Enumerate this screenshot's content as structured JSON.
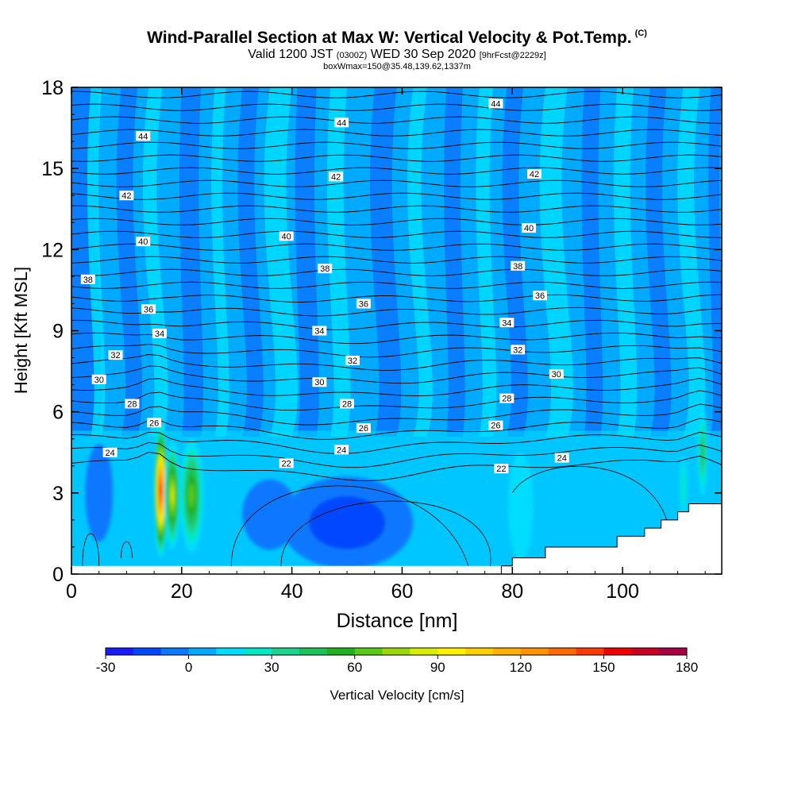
{
  "title": {
    "main": "Wind-Parallel Section at Max W: Vertical Velocity & Pot.Temp.",
    "copyright": "(C)",
    "valid_prefix": "Valid 1200 JST",
    "valid_utc": "(0300Z)",
    "valid_date": "WED 30 Sep 2020",
    "forecast": "[9hrFcst@2229z]",
    "box_info": "boxWmax=150@35.48,139.62,1337m"
  },
  "chart_data": {
    "type": "heatmap",
    "xlabel": "Distance [nm]",
    "ylabel": "Height [Kft MSL]",
    "xlim": [
      0,
      118
    ],
    "ylim": [
      0,
      18
    ],
    "xticks": [
      "0",
      "20",
      "40",
      "60",
      "80",
      "100"
    ],
    "yticks": [
      "0",
      "3",
      "6",
      "9",
      "12",
      "15",
      "18"
    ],
    "colorbar": {
      "label": "Vertical Velocity [cm/s]",
      "min": -30,
      "max": 180,
      "step": 10,
      "tick_labels": [
        "-30",
        "0",
        "30",
        "60",
        "90",
        "120",
        "150",
        "180"
      ],
      "colors": [
        "#1a1aff",
        "#0047ff",
        "#0a78ff",
        "#00aaff",
        "#00ddff",
        "#00e8c8",
        "#1cd28c",
        "#1ec25a",
        "#22b022",
        "#5ac818",
        "#9ad80a",
        "#d8ee00",
        "#fff000",
        "#ffd000",
        "#ffb000",
        "#ff9200",
        "#ff6a00",
        "#ff3a00",
        "#ee0000",
        "#c80022",
        "#a80044",
        "#8a0066",
        "#6a0088"
      ]
    },
    "theta_contours_label": "Pot.Temp.",
    "theta_contour_labels": [
      {
        "x": 7,
        "y": 4.5,
        "text": "24"
      },
      {
        "x": 49,
        "y": 4.6,
        "text": "24"
      },
      {
        "x": 89,
        "y": 4.3,
        "text": "24"
      },
      {
        "x": 39,
        "y": 4.1,
        "text": "22"
      },
      {
        "x": 78,
        "y": 3.9,
        "text": "22"
      },
      {
        "x": 15,
        "y": 5.6,
        "text": "26"
      },
      {
        "x": 53,
        "y": 5.4,
        "text": "26"
      },
      {
        "x": 77,
        "y": 5.5,
        "text": "26"
      },
      {
        "x": 11,
        "y": 6.3,
        "text": "28"
      },
      {
        "x": 50,
        "y": 6.3,
        "text": "28"
      },
      {
        "x": 79,
        "y": 6.5,
        "text": "28"
      },
      {
        "x": 5,
        "y": 7.2,
        "text": "30"
      },
      {
        "x": 45,
        "y": 7.1,
        "text": "30"
      },
      {
        "x": 88,
        "y": 7.4,
        "text": "30"
      },
      {
        "x": 8,
        "y": 8.1,
        "text": "32"
      },
      {
        "x": 51,
        "y": 7.9,
        "text": "32"
      },
      {
        "x": 81,
        "y": 8.3,
        "text": "32"
      },
      {
        "x": 16,
        "y": 8.9,
        "text": "34"
      },
      {
        "x": 45,
        "y": 9.0,
        "text": "34"
      },
      {
        "x": 79,
        "y": 9.3,
        "text": "34"
      },
      {
        "x": 14,
        "y": 9.8,
        "text": "36"
      },
      {
        "x": 53,
        "y": 10.0,
        "text": "36"
      },
      {
        "x": 85,
        "y": 10.3,
        "text": "36"
      },
      {
        "x": 3,
        "y": 10.9,
        "text": "38"
      },
      {
        "x": 46,
        "y": 11.3,
        "text": "38"
      },
      {
        "x": 81,
        "y": 11.4,
        "text": "38"
      },
      {
        "x": 13,
        "y": 12.3,
        "text": "40"
      },
      {
        "x": 39,
        "y": 12.5,
        "text": "40"
      },
      {
        "x": 83,
        "y": 12.8,
        "text": "40"
      },
      {
        "x": 10,
        "y": 14.0,
        "text": "42"
      },
      {
        "x": 48,
        "y": 14.7,
        "text": "42"
      },
      {
        "x": 84,
        "y": 14.8,
        "text": "42"
      },
      {
        "x": 13,
        "y": 16.2,
        "text": "44"
      },
      {
        "x": 49,
        "y": 16.7,
        "text": "44"
      },
      {
        "x": 77,
        "y": 17.4,
        "text": "44"
      }
    ],
    "w_features": [
      {
        "x": 16.2,
        "y": 3.1,
        "rx": 1.4,
        "ry": 2.5,
        "value": 150
      },
      {
        "x": 18.3,
        "y": 2.9,
        "rx": 1.5,
        "ry": 2.0,
        "value": 80
      },
      {
        "x": 21.8,
        "y": 2.9,
        "rx": 2.2,
        "ry": 2.1,
        "value": 60
      },
      {
        "x": 114.5,
        "y": 4.5,
        "rx": 0.9,
        "ry": 1.6,
        "value": 40
      },
      {
        "x": 81.5,
        "y": 2.5,
        "rx": 2.3,
        "ry": 2.0,
        "value": 10
      },
      {
        "x": 111.0,
        "y": 3.2,
        "rx": 0.7,
        "ry": 1.2,
        "value": 20
      },
      {
        "x": 50.0,
        "y": 1.9,
        "rx": 12.0,
        "ry": 1.7,
        "value": -20
      },
      {
        "x": 36.0,
        "y": 2.2,
        "rx": 5.0,
        "ry": 1.3,
        "value": -10
      },
      {
        "x": 5.0,
        "y": 3.0,
        "rx": 2.5,
        "ry": 1.8,
        "value": -10
      }
    ],
    "terrain": [
      [
        78,
        0.3
      ],
      [
        80,
        0.3
      ],
      [
        80,
        0.6
      ],
      [
        86,
        0.6
      ],
      [
        86,
        1.0
      ],
      [
        99,
        1.0
      ],
      [
        99,
        1.4
      ],
      [
        104,
        1.4
      ],
      [
        104,
        1.7
      ],
      [
        107,
        1.7
      ],
      [
        107,
        2.0
      ],
      [
        110,
        2.0
      ],
      [
        110,
        2.3
      ],
      [
        112,
        2.3
      ],
      [
        112,
        2.6
      ],
      [
        118,
        2.6
      ]
    ]
  }
}
